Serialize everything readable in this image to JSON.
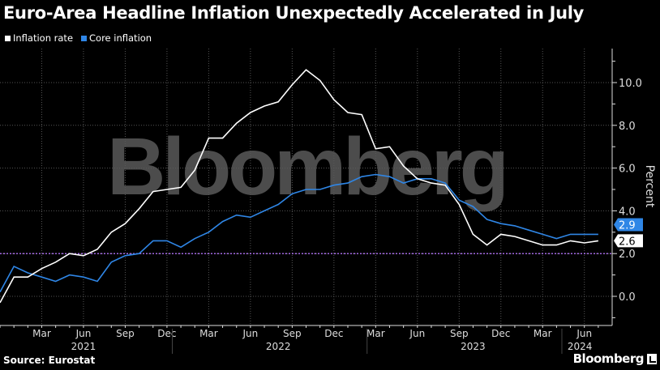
{
  "title": "Euro-Area Headline Inflation Unexpectedly Accelerated in July",
  "source": "Source: Eurostat",
  "brand": "Bloomberg",
  "watermark": "Bloomberg",
  "colors": {
    "inflation": "#ffffff",
    "core": "#2f86e6",
    "target": "#a066e0",
    "background": "#000000"
  },
  "legend": [
    {
      "label": "Inflation rate",
      "color": "#ffffff"
    },
    {
      "label": "Core inflation",
      "color": "#2f86e6"
    }
  ],
  "chart_data": {
    "type": "line",
    "ylabel": "Percent",
    "ylim": [
      -1.3,
      11.6
    ],
    "yticks": [
      "0.0",
      "2.0",
      "4.0",
      "6.0",
      "8.0",
      "10.0"
    ],
    "grid": true,
    "legend_position": "top-left",
    "reference_line": {
      "value": 2.0,
      "style": "dotted"
    },
    "x": [
      "2020-12",
      "2021-01",
      "2021-02",
      "2021-03",
      "2021-04",
      "2021-05",
      "2021-06",
      "2021-07",
      "2021-08",
      "2021-09",
      "2021-10",
      "2021-11",
      "2021-12",
      "2022-01",
      "2022-02",
      "2022-03",
      "2022-04",
      "2022-05",
      "2022-06",
      "2022-07",
      "2022-08",
      "2022-09",
      "2022-10",
      "2022-11",
      "2022-12",
      "2023-01",
      "2023-02",
      "2023-03",
      "2023-04",
      "2023-05",
      "2023-06",
      "2023-07",
      "2023-08",
      "2023-09",
      "2023-10",
      "2023-11",
      "2023-12",
      "2024-01",
      "2024-02",
      "2024-03",
      "2024-04",
      "2024-05",
      "2024-06",
      "2024-07"
    ],
    "month_ticks": [
      "Mar",
      "Jun",
      "Sep",
      "Dec",
      "Mar",
      "Jun",
      "Sep",
      "Dec",
      "Mar",
      "Jun",
      "Sep",
      "Dec",
      "Mar",
      "Jun"
    ],
    "year_labels": [
      "2021",
      "2022",
      "2023",
      "2024"
    ],
    "series": [
      {
        "name": "Inflation rate",
        "end_label": "2.6",
        "values": [
          -0.3,
          0.9,
          0.9,
          1.3,
          1.6,
          2.0,
          1.9,
          2.2,
          3.0,
          3.4,
          4.1,
          4.9,
          5.0,
          5.1,
          5.9,
          7.4,
          7.4,
          8.1,
          8.6,
          8.9,
          9.1,
          9.9,
          10.6,
          10.1,
          9.2,
          8.6,
          8.5,
          6.9,
          7.0,
          6.1,
          5.5,
          5.3,
          5.2,
          4.3,
          2.9,
          2.4,
          2.9,
          2.8,
          2.6,
          2.4,
          2.4,
          2.6,
          2.5,
          2.6
        ]
      },
      {
        "name": "Core inflation",
        "end_label": "2.9",
        "values": [
          0.2,
          1.4,
          1.1,
          0.9,
          0.7,
          1.0,
          0.9,
          0.7,
          1.6,
          1.9,
          2.0,
          2.6,
          2.6,
          2.3,
          2.7,
          3.0,
          3.5,
          3.8,
          3.7,
          4.0,
          4.3,
          4.8,
          5.0,
          5.0,
          5.2,
          5.3,
          5.6,
          5.7,
          5.6,
          5.3,
          5.5,
          5.5,
          5.3,
          4.5,
          4.2,
          3.6,
          3.4,
          3.3,
          3.1,
          2.9,
          2.7,
          2.9,
          2.9,
          2.9
        ]
      }
    ]
  }
}
